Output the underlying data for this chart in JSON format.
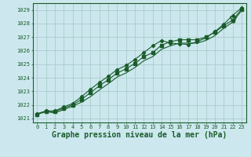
{
  "title": "Graphe pression niveau de la mer (hPa)",
  "background_color": "#cce8ee",
  "grid_color": "#aacccc",
  "line_color": "#1a5c2a",
  "xlim": [
    -0.5,
    23.5
  ],
  "ylim": [
    1020.7,
    1029.5
  ],
  "yticks": [
    1021,
    1022,
    1023,
    1024,
    1025,
    1026,
    1027,
    1028,
    1029
  ],
  "xticks": [
    0,
    1,
    2,
    3,
    4,
    5,
    6,
    7,
    8,
    9,
    10,
    11,
    12,
    13,
    14,
    15,
    16,
    17,
    18,
    19,
    20,
    21,
    22,
    23
  ],
  "series_base": [
    1021.3,
    1021.5,
    1021.4,
    1021.65,
    1021.9,
    1022.2,
    1022.6,
    1023.1,
    1023.55,
    1024.05,
    1024.35,
    1024.75,
    1025.25,
    1025.55,
    1026.1,
    1026.35,
    1026.55,
    1026.55,
    1026.55,
    1026.75,
    1027.1,
    1027.65,
    1028.1,
    1028.95
  ],
  "series_mid": [
    1021.3,
    1021.5,
    1021.5,
    1021.75,
    1022.0,
    1022.4,
    1022.9,
    1023.4,
    1023.85,
    1024.35,
    1024.65,
    1025.05,
    1025.55,
    1025.85,
    1026.4,
    1026.65,
    1026.8,
    1026.8,
    1026.8,
    1027.0,
    1027.35,
    1027.85,
    1028.25,
    1029.05
  ],
  "series_top": [
    1021.35,
    1021.55,
    1021.55,
    1021.85,
    1022.1,
    1022.6,
    1023.15,
    1023.65,
    1024.1,
    1024.6,
    1024.9,
    1025.35,
    1025.85,
    1026.35,
    1026.75,
    1026.55,
    1026.5,
    1026.45,
    1026.65,
    1026.95,
    1027.4,
    1027.95,
    1028.6,
    1029.15
  ],
  "open_triangle_x": 22,
  "open_triangle_y": 1028.3,
  "title_fontsize": 7,
  "tick_fontsize": 5
}
